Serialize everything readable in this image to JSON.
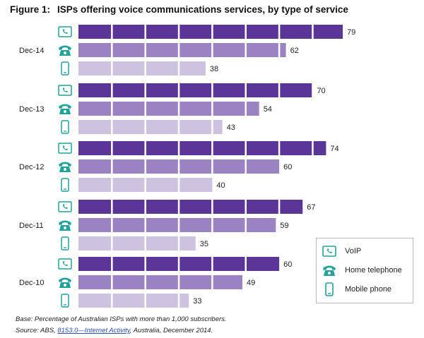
{
  "figure": {
    "label": "Figure 1:",
    "title": "ISPs offering voice communications services, by type of service"
  },
  "colors": {
    "voip": "#5b3597",
    "home_telephone": "#9b82c3",
    "mobile_phone": "#cdc2e0",
    "icon": "#1fa39b"
  },
  "chart_data": {
    "type": "bar",
    "orientation": "horizontal",
    "categories": [
      "Dec-14",
      "Dec-13",
      "Dec-12",
      "Dec-11",
      "Dec-10"
    ],
    "series": [
      {
        "name": "VoIP",
        "values": [
          79,
          70,
          74,
          67,
          60
        ]
      },
      {
        "name": "Home telephone",
        "values": [
          62,
          54,
          60,
          59,
          49
        ]
      },
      {
        "name": "Mobile phone",
        "values": [
          38,
          43,
          40,
          35,
          33
        ]
      }
    ],
    "xlim": [
      0,
      100
    ],
    "grid": true,
    "legend": "bottom-right"
  },
  "legend": {
    "items": [
      {
        "label": "VoIP",
        "icon": "voip-phone-icon"
      },
      {
        "label": "Home telephone",
        "icon": "home-telephone-icon"
      },
      {
        "label": "Mobile phone",
        "icon": "mobile-phone-icon"
      }
    ]
  },
  "footnotes": {
    "base": "Base: Percentage of Australian ISPs with more than 1,000 subscribers.",
    "source_prefix": "Source: ABS, ",
    "source_link": "8153.0—Internet Activity",
    "source_suffix": ", Australia, December 2014."
  }
}
